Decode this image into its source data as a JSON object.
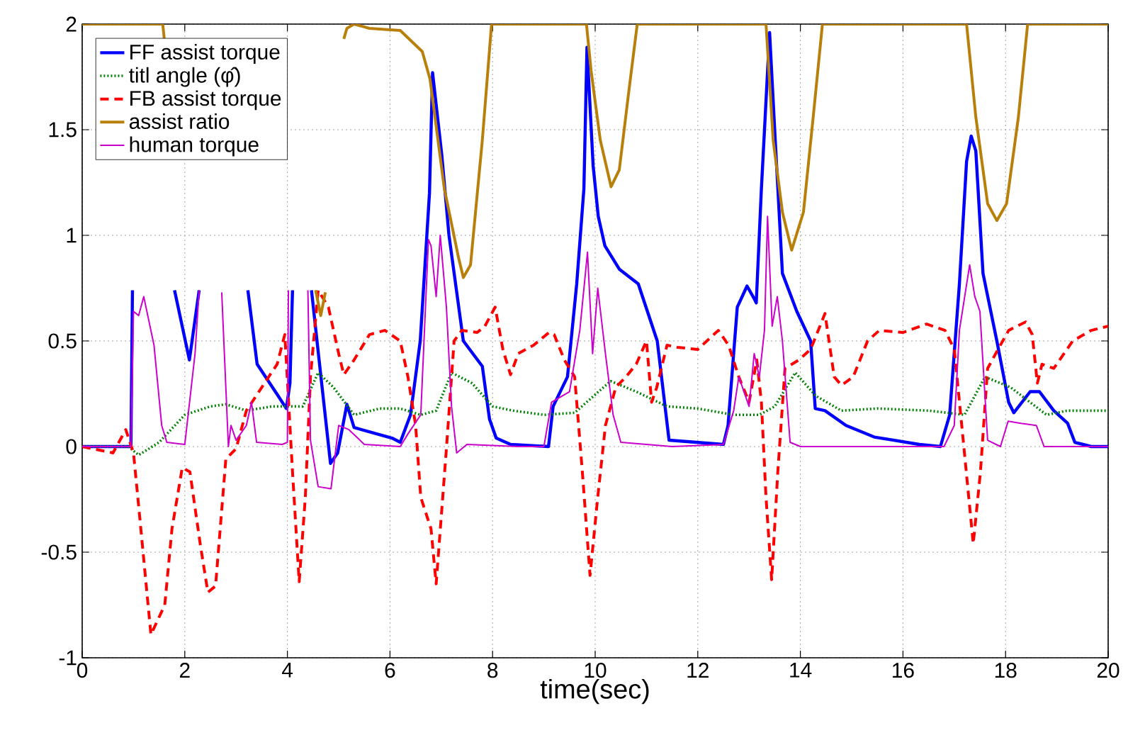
{
  "chart_data": {
    "type": "line",
    "xlabel": "time(sec)",
    "xlim": [
      0,
      20
    ],
    "ylim": [
      -1,
      2
    ],
    "xticks": [
      0,
      2,
      4,
      6,
      8,
      10,
      12,
      14,
      16,
      18,
      20
    ],
    "yticks": [
      -1,
      -0.5,
      0,
      0.5,
      1,
      1.5,
      2
    ],
    "grid": true,
    "legend": "top left",
    "series": [
      {
        "name": "FF assist torque",
        "color": "#0000ff",
        "line_style": "solid",
        "x": [
          0,
          0.95,
          0.98,
          1.5,
          1.8,
          2.09,
          2.28,
          2.8,
          3.23,
          3.41,
          3.82,
          3.98,
          4.05,
          4.1,
          4.3,
          4.47,
          4.6,
          4.84,
          4.98,
          5.16,
          5.3,
          6.04,
          6.2,
          6.4,
          6.59,
          6.77,
          6.83,
          7.01,
          7.15,
          7.43,
          7.8,
          7.94,
          8.07,
          8.35,
          9.09,
          9.18,
          9.46,
          9.64,
          9.78,
          9.84,
          9.96,
          10.06,
          10.19,
          10.47,
          10.84,
          11.21,
          11.44,
          12.5,
          12.59,
          12.77,
          12.96,
          13.1,
          13.14,
          13.24,
          13.4,
          13.51,
          13.65,
          13.93,
          14.2,
          14.29,
          14.48,
          14.89,
          15.44,
          16.32,
          16.73,
          16.91,
          17.1,
          17.24,
          17.33,
          17.42,
          17.56,
          17.83,
          18.06,
          18.16,
          18.48,
          18.66,
          18.94,
          19.21,
          19.35,
          19.67,
          20
        ],
        "values": [
          0,
          0,
          0.74,
          null,
          0.74,
          0.41,
          0.74,
          null,
          0.74,
          0.39,
          0.24,
          0.18,
          0.3,
          0.74,
          null,
          0.74,
          0.45,
          -0.08,
          -0.03,
          0.2,
          0.09,
          0.04,
          0.02,
          0.15,
          0.5,
          1.2,
          1.77,
          1.38,
          1.0,
          0.5,
          0.38,
          0.13,
          0.04,
          0.01,
          0,
          0.19,
          0.33,
          0.77,
          1.22,
          1.89,
          1.33,
          1.09,
          0.95,
          0.84,
          0.77,
          0.5,
          0.03,
          0.01,
          0.1,
          0.66,
          0.76,
          0.7,
          0.68,
          1.22,
          1.96,
          1.45,
          0.82,
          0.64,
          0.5,
          0.18,
          0.17,
          0.1,
          0.045,
          0.01,
          0,
          0.15,
          0.77,
          1.35,
          1.47,
          1.4,
          0.82,
          0.5,
          0.21,
          0.16,
          0.26,
          0.26,
          0.17,
          0.11,
          0.02,
          0,
          0
        ]
      },
      {
        "name": "titl angle (φ̂)",
        "color": "#008000",
        "line_style": "dotted",
        "x": [
          0,
          0.9,
          1.1,
          1.5,
          2.0,
          2.5,
          2.8,
          3.2,
          3.7,
          4.0,
          4.3,
          4.6,
          4.9,
          5.3,
          5.8,
          6.2,
          6.6,
          6.9,
          7.2,
          7.6,
          8.0,
          8.4,
          9.0,
          9.6,
          10.3,
          10.8,
          11.4,
          12.0,
          12.7,
          13.2,
          13.5,
          13.9,
          14.3,
          14.8,
          15.5,
          16.5,
          17.2,
          17.6,
          18.1,
          18.8,
          19.2,
          20
        ],
        "values": [
          0,
          0,
          -0.04,
          0.02,
          0.15,
          0.19,
          0.2,
          0.17,
          0.19,
          0.19,
          0.19,
          0.35,
          0.28,
          0.15,
          0.18,
          0.18,
          0.15,
          0.17,
          0.35,
          0.3,
          0.19,
          0.17,
          0.15,
          0.16,
          0.31,
          0.26,
          0.19,
          0.18,
          0.15,
          0.15,
          0.19,
          0.35,
          0.24,
          0.17,
          0.18,
          0.17,
          0.15,
          0.33,
          0.28,
          0.15,
          0.17,
          0.17
        ]
      },
      {
        "name": "FB assist torque",
        "color": "#ff0000",
        "line_style": "dashed",
        "x": [
          0,
          0.6,
          0.85,
          1.0,
          1.1,
          1.34,
          1.61,
          1.75,
          1.95,
          2.1,
          2.3,
          2.45,
          2.6,
          2.8,
          3.0,
          3.2,
          3.5,
          3.8,
          3.95,
          4.1,
          4.23,
          4.35,
          4.45,
          4.6,
          4.8,
          5.0,
          5.1,
          5.3,
          5.6,
          5.9,
          6.2,
          6.35,
          6.5,
          6.6,
          6.8,
          6.9,
          7.1,
          7.25,
          7.4,
          7.7,
          7.85,
          8.05,
          8.2,
          8.35,
          8.5,
          8.8,
          9.1,
          9.2,
          9.4,
          9.6,
          9.75,
          9.9,
          10.05,
          10.2,
          10.4,
          10.6,
          10.8,
          11.0,
          11.1,
          11.2,
          11.4,
          11.6,
          12.0,
          12.4,
          12.6,
          12.8,
          13.0,
          13.15,
          13.24,
          13.33,
          13.44,
          13.56,
          13.7,
          13.97,
          14.2,
          14.48,
          14.66,
          14.8,
          15.03,
          15.31,
          15.54,
          16.0,
          16.46,
          16.82,
          17.0,
          17.19,
          17.37,
          17.51,
          17.65,
          17.83,
          18.06,
          18.39,
          18.52,
          18.62,
          18.71,
          18.94,
          19.31,
          19.67,
          20
        ],
        "values": [
          0,
          -0.03,
          0.08,
          -0.03,
          -0.28,
          -0.89,
          -0.75,
          -0.39,
          -0.1,
          -0.12,
          -0.46,
          -0.69,
          -0.66,
          -0.06,
          -0.01,
          0.17,
          0.28,
          0.39,
          0.53,
          -0.12,
          -0.64,
          -0.24,
          0.33,
          0.74,
          0.66,
          0.44,
          0.34,
          0.41,
          0.53,
          0.55,
          0.5,
          0.33,
          0.1,
          -0.24,
          -0.39,
          -0.65,
          -0.01,
          0.5,
          0.55,
          0.54,
          0.57,
          0.66,
          0.46,
          0.34,
          0.44,
          0.48,
          0.54,
          0.53,
          0.41,
          0.33,
          -0.12,
          -0.61,
          -0.24,
          0.1,
          0.28,
          0.33,
          0.39,
          0.5,
          0.21,
          0.28,
          0.48,
          0.47,
          0.46,
          0.55,
          0.48,
          0.33,
          0.21,
          0.41,
          0.21,
          -0.24,
          -0.63,
          -0.12,
          0.37,
          0.41,
          0.46,
          0.63,
          0.33,
          0.29,
          0.33,
          0.5,
          0.55,
          0.54,
          0.58,
          0.55,
          0.46,
          -0.01,
          -0.46,
          -0.12,
          0.37,
          0.45,
          0.55,
          0.59,
          0.53,
          0.3,
          0.39,
          0.37,
          0.5,
          0.55,
          0.57
        ]
      },
      {
        "name": "assist ratio",
        "color": "#b8800a",
        "line_style": "solid",
        "x": [
          0,
          1.57,
          1.6,
          3.0,
          4.55,
          4.65,
          4.74,
          4.8,
          5.1,
          5.16,
          5.3,
          5.6,
          6.2,
          6.63,
          6.78,
          7.06,
          7.34,
          7.43,
          7.57,
          7.8,
          7.98,
          9.83,
          9.92,
          10.1,
          10.31,
          10.47,
          10.65,
          10.82,
          13.33,
          13.47,
          13.65,
          13.83,
          14.06,
          14.25,
          14.43,
          17.24,
          17.42,
          17.65,
          17.83,
          18.02,
          18.25,
          18.43,
          20
        ],
        "values": [
          2,
          2,
          1.93,
          null,
          0.74,
          0.62,
          0.73,
          null,
          1.93,
          1.98,
          2,
          1.98,
          1.97,
          1.87,
          1.74,
          1.22,
          0.89,
          0.8,
          0.86,
          1.45,
          2,
          2,
          1.78,
          1.45,
          1.23,
          1.31,
          1.67,
          2,
          2,
          1.45,
          1.11,
          0.93,
          1.11,
          1.56,
          2,
          2,
          1.56,
          1.15,
          1.07,
          1.15,
          1.56,
          2,
          2
        ]
      },
      {
        "name": "human torque",
        "color": "#cc00cc",
        "line_style": "solid",
        "x": [
          0,
          0.95,
          1.0,
          1.1,
          1.2,
          1.4,
          1.55,
          1.65,
          2.0,
          2.2,
          2.28,
          2.5,
          2.72,
          2.85,
          2.9,
          3.0,
          3.2,
          3.3,
          3.4,
          3.9,
          4.0,
          4.02,
          4.2,
          4.4,
          4.45,
          4.6,
          4.85,
          5.0,
          5.2,
          5.5,
          6.2,
          6.35,
          6.6,
          6.75,
          6.8,
          6.9,
          6.98,
          7.1,
          7.2,
          7.3,
          7.5,
          8.5,
          9.0,
          9.15,
          9.5,
          9.7,
          9.85,
          9.95,
          10.05,
          10.2,
          10.35,
          10.5,
          11.5,
          12.5,
          12.7,
          12.8,
          13.0,
          13.1,
          13.2,
          13.3,
          13.36,
          13.45,
          13.55,
          13.65,
          13.8,
          14.0,
          16.8,
          17.0,
          17.1,
          17.3,
          17.4,
          17.5,
          17.65,
          17.9,
          18.05,
          18.3,
          18.6,
          18.75,
          20
        ],
        "values": [
          0,
          0,
          0.64,
          0.62,
          0.71,
          0.48,
          0.1,
          0.02,
          0.01,
          0.44,
          0.74,
          null,
          0.73,
          0,
          0.1,
          0.03,
          0.1,
          0.21,
          0.02,
          0.01,
          0.02,
          0.74,
          null,
          0.74,
          0.03,
          -0.19,
          -0.2,
          0.1,
          0.08,
          0.01,
          0,
          0.06,
          0.15,
          0.98,
          0.95,
          0.71,
          1.0,
          0.66,
          0.19,
          -0.03,
          0.01,
          0,
          0,
          0.21,
          0.26,
          0.55,
          0.92,
          0.44,
          0.75,
          0.44,
          0.15,
          0.02,
          0,
          0.01,
          0.17,
          0.33,
          0.19,
          0.44,
          0.33,
          0.55,
          1.09,
          0.57,
          0.71,
          0.5,
          0.02,
          0,
          0,
          0.1,
          0.55,
          0.86,
          0.71,
          0.64,
          0.03,
          0,
          0.12,
          0.11,
          0.1,
          0,
          0
        ]
      }
    ]
  }
}
